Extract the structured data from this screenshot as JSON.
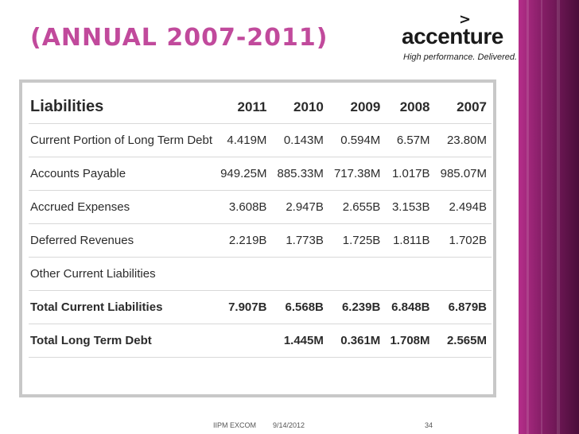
{
  "slide": {
    "title": "(ANNUAL 2007-2011)"
  },
  "logo": {
    "brand": "accenture",
    "chevron": ">",
    "tagline": "High performance. Delivered."
  },
  "table": {
    "header_label": "Liabilities",
    "years": [
      "2011",
      "2010",
      "2009",
      "2008",
      "2007"
    ],
    "rows": [
      {
        "label": "Current Portion of Long Term Debt",
        "values": [
          "4.419M",
          "0.143M",
          "0.594M",
          "6.57M",
          "23.80M"
        ],
        "bold": false
      },
      {
        "label": "Accounts Payable",
        "values": [
          "949.25M",
          "885.33M",
          "717.38M",
          "1.017B",
          "985.07M"
        ],
        "bold": false
      },
      {
        "label": "Accrued Expenses",
        "values": [
          "3.608B",
          "2.947B",
          "2.655B",
          "3.153B",
          "2.494B"
        ],
        "bold": false
      },
      {
        "label": "Deferred Revenues",
        "values": [
          "2.219B",
          "1.773B",
          "1.725B",
          "1.811B",
          "1.702B"
        ],
        "bold": false
      },
      {
        "label": "Other Current Liabilities",
        "values": [
          "",
          "",
          "",
          "",
          ""
        ],
        "bold": false
      },
      {
        "label": "Total Current Liabilities",
        "values": [
          "7.907B",
          "6.568B",
          "6.239B",
          "6.848B",
          "6.879B"
        ],
        "bold": true
      },
      {
        "label": "Total Long Term Debt",
        "values": [
          "",
          "1.445M",
          "0.361M",
          "1.708M",
          "2.565M"
        ],
        "bold": true
      }
    ]
  },
  "footer": {
    "left": "IIPM EXCOM",
    "date": "9/14/2012",
    "page": "34"
  },
  "colors": {
    "title": "#c14a9c",
    "band": "#8a1f6a"
  }
}
